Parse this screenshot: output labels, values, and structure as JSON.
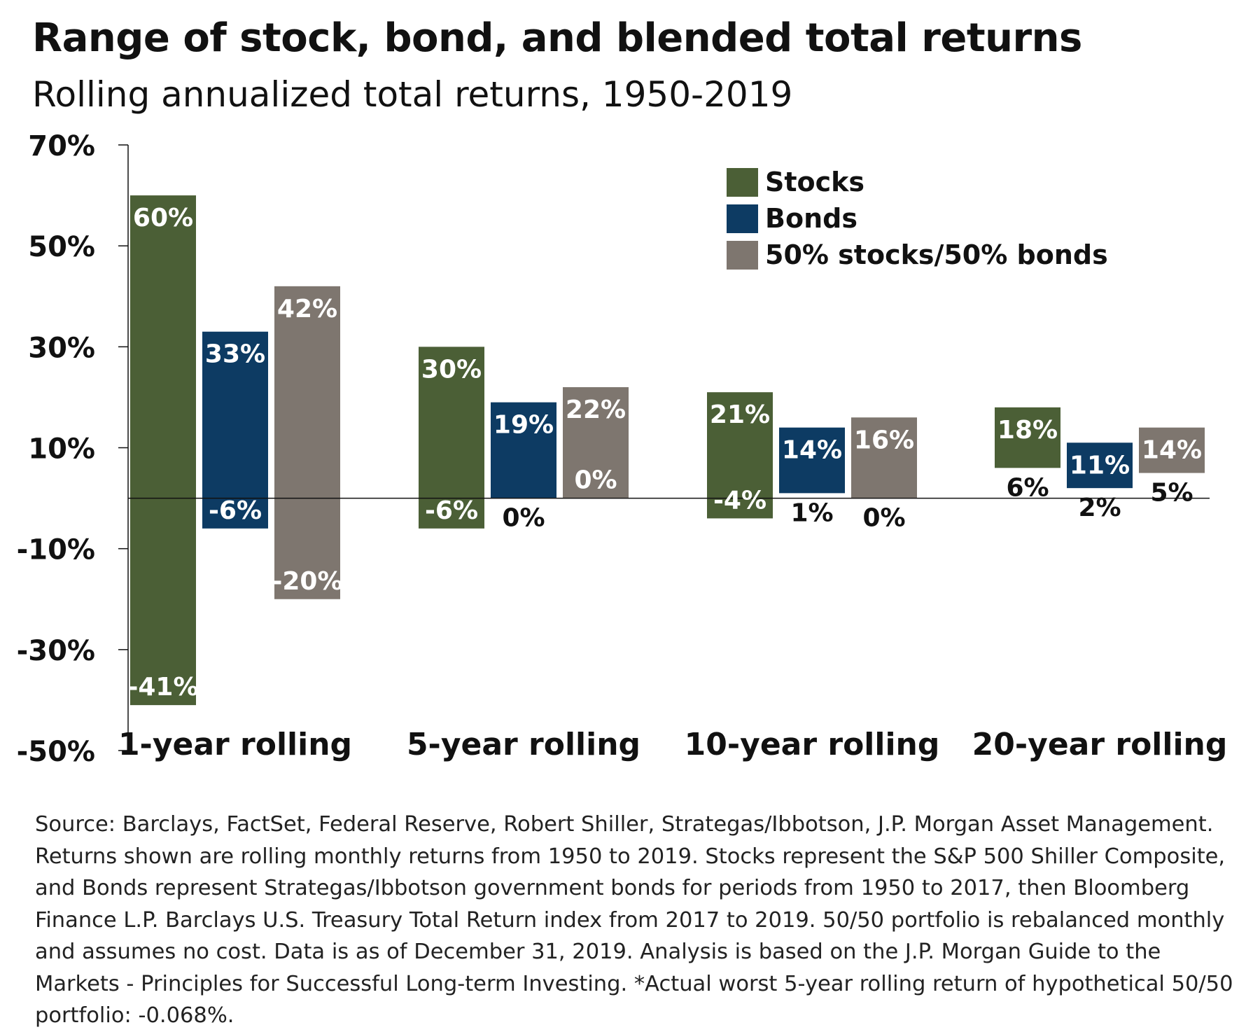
{
  "chart_data": {
    "type": "bar",
    "subtype": "floating-range",
    "title": "Range of stock, bond, and blended total returns",
    "subtitle": "Rolling annualized total returns, 1950-2019",
    "categories": [
      "1-year rolling",
      "5-year rolling",
      "10-year rolling",
      "20-year rolling"
    ],
    "series": [
      {
        "name": "Stocks",
        "color": "#4b5f36",
        "max": [
          60,
          30,
          21,
          18
        ],
        "min": [
          -41,
          -6,
          -4,
          6
        ],
        "max_labels": [
          "60%",
          "30%",
          "21%",
          "18%"
        ],
        "min_labels": [
          "-41%",
          "-6%",
          "-4%",
          "6%"
        ]
      },
      {
        "name": "Bonds",
        "color": "#0d3b63",
        "max": [
          33,
          19,
          14,
          11
        ],
        "min": [
          -6,
          0,
          1,
          2
        ],
        "max_labels": [
          "33%",
          "19%",
          "14%",
          "11%"
        ],
        "min_labels": [
          "-6%",
          "0%",
          "1%",
          "2%"
        ]
      },
      {
        "name": "50% stocks/50% bonds",
        "color": "#7e766f",
        "max": [
          42,
          22,
          16,
          14
        ],
        "min": [
          -20,
          0,
          0,
          5
        ],
        "max_labels": [
          "42%",
          "22%",
          "16%",
          "14%"
        ],
        "min_labels": [
          "-20%",
          "0%",
          "0%",
          "5%"
        ]
      }
    ],
    "ylim": [
      -50,
      70
    ],
    "yticks": [
      -50,
      -30,
      -10,
      10,
      30,
      50,
      70
    ],
    "ytick_labels": [
      "-50%",
      "-30%",
      "-10%",
      "10%",
      "30%",
      "50%",
      "70%"
    ],
    "legend_position": "top-right",
    "grid": false
  },
  "source_note": "Source: Barclays, FactSet, Federal Reserve, Robert Shiller, Strategas/Ibbotson, J.P. Morgan Asset Management. Returns shown are rolling monthly returns from 1950 to 2019. Stocks represent the S&P 500 Shiller Composite, and Bonds represent Strategas/Ibbotson government bonds for periods from 1950 to 2017, then Bloomberg Finance L.P. Barclays U.S. Treasury Total Return index from 2017 to 2019. 50/50 portfolio is rebalanced monthly and assumes no cost. Data is as of December 31, 2019. Analysis is based on the J.P. Morgan Guide to the Markets - Principles for Successful Long-term Investing. *Actual worst 5-year rolling return of hypothetical 50/50 portfolio: -0.068%."
}
